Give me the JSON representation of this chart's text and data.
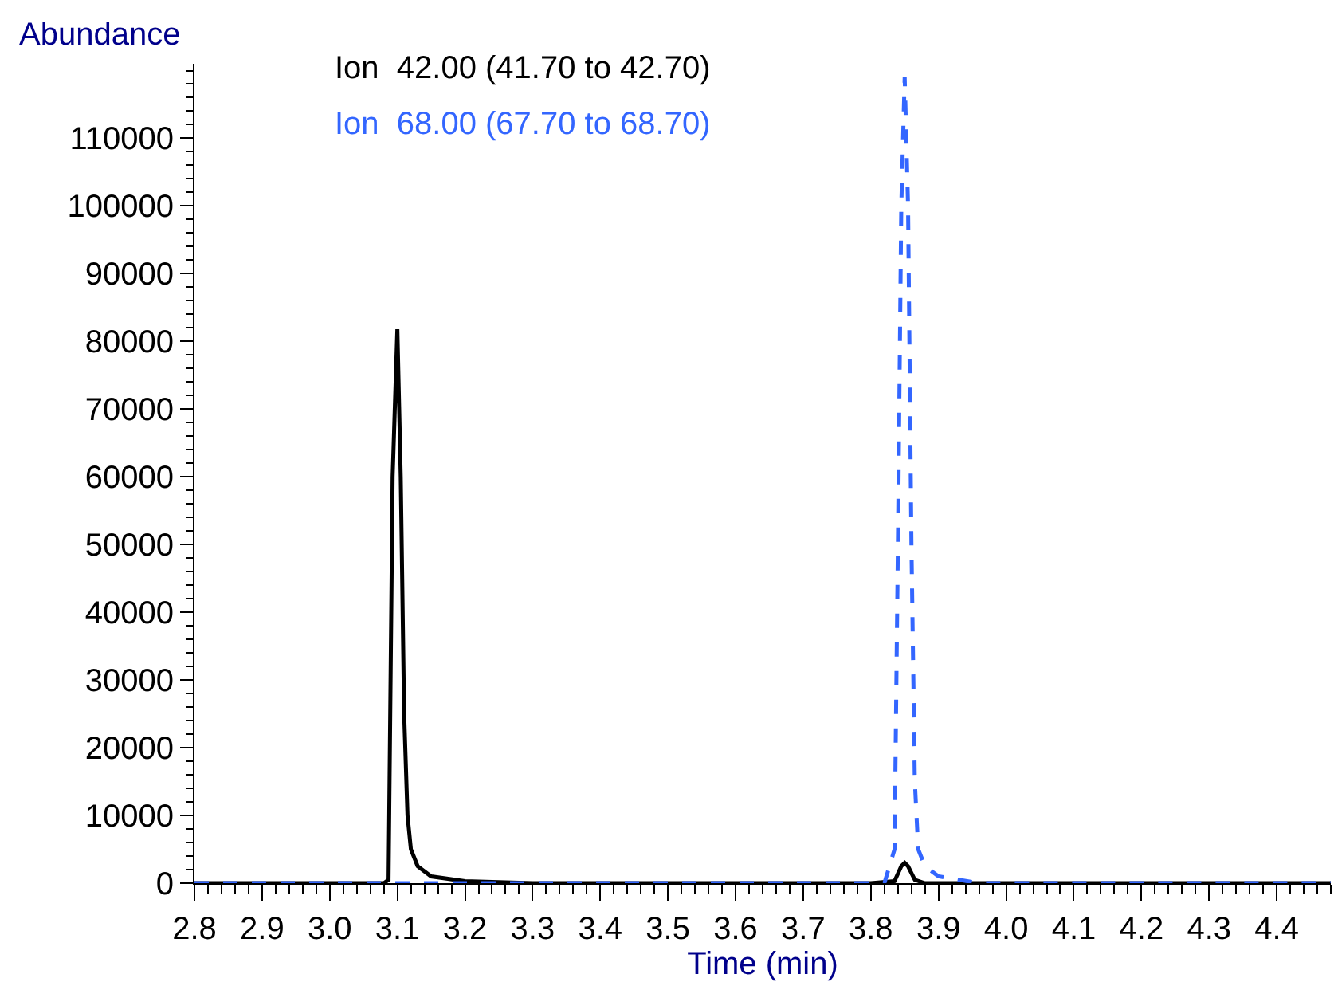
{
  "chart_data": {
    "type": "line",
    "xlabel": "Time (min)",
    "ylabel": "Abundance",
    "xlim": [
      2.8,
      4.48
    ],
    "xticks": [
      2.8,
      2.9,
      {
        "value": 3,
        "label": "3.0"
      },
      3.1,
      3.2,
      3.3,
      3.4,
      3.5,
      3.6,
      3.7,
      3.8,
      3.9,
      {
        "value": 4,
        "label": "4.0"
      },
      4.1,
      4.2,
      4.3,
      4.4
    ],
    "ylim": [
      0,
      121000
    ],
    "yticks": [
      0,
      10000,
      20000,
      30000,
      40000,
      50000,
      60000,
      70000,
      80000,
      90000,
      100000,
      110000
    ],
    "legend": false,
    "marker": "none",
    "series": [
      {
        "name": "Ion  42.00 (41.70 to 42.70)",
        "color": "#000000",
        "line_style": "solid",
        "x": [
          2.8,
          3.08,
          3.087,
          3.093,
          3.1,
          3.105,
          3.11,
          3.115,
          3.12,
          3.13,
          3.15,
          3.2,
          3.3,
          3.8,
          3.835,
          3.845,
          3.85,
          3.855,
          3.865,
          3.88,
          4.48
        ],
        "values": [
          0,
          0,
          500,
          60000,
          81800,
          60000,
          25000,
          10000,
          5000,
          2500,
          1000,
          300,
          0,
          0,
          300,
          2500,
          3000,
          2500,
          500,
          0,
          0
        ]
      },
      {
        "name": "Ion  68.00 (67.70 to 68.70)",
        "color": "#3366ff",
        "line_style": "dashed",
        "x": [
          2.8,
          3.82,
          3.835,
          3.84,
          3.845,
          3.85,
          3.855,
          3.86,
          3.865,
          3.87,
          3.88,
          3.9,
          3.93,
          3.96,
          4.48
        ],
        "values": [
          0,
          0,
          5000,
          50000,
          100000,
          119000,
          100000,
          50000,
          15000,
          5000,
          2500,
          1000,
          500,
          0,
          0
        ]
      }
    ]
  }
}
